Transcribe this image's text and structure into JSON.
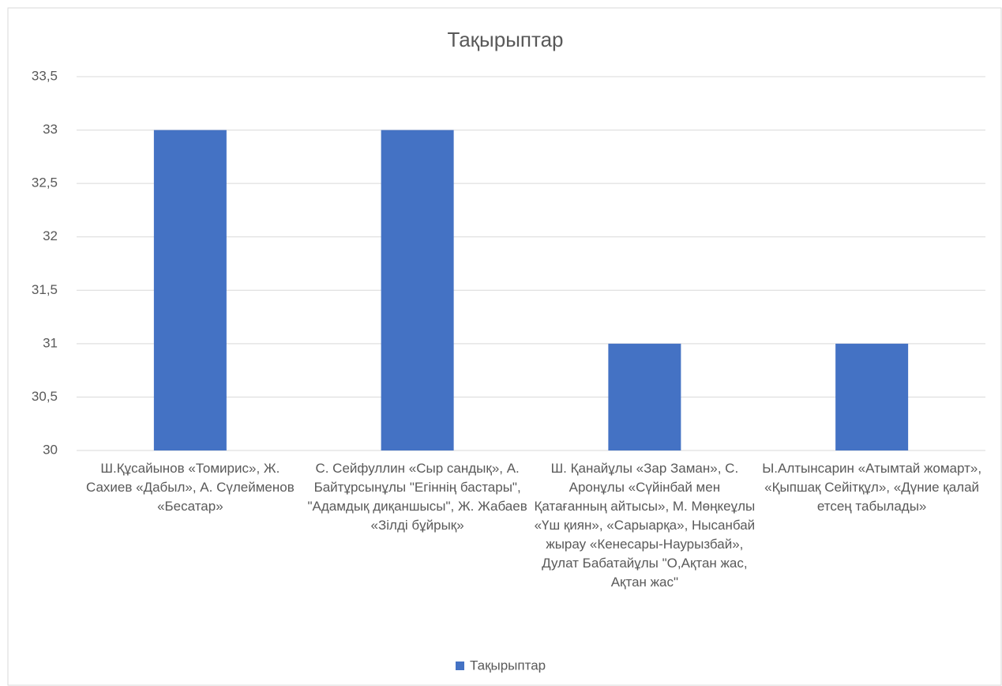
{
  "chart_data": {
    "type": "bar",
    "title": "Тақырыптар",
    "categories": [
      "Ш.Құсайынов «Томирис», Ж. Сахиев «Дабыл», А. Сүлейменов «Бесатар»",
      "С. Сейфуллин «Сыр сандық»,  А. Байтұрсынұлы \"Егіннің бастары\", \"Адамдық диқаншысы\", Ж. Жабаев «Зілді бұйрық»",
      "Ш. Қанайұлы «Зар Заман», С. Аронұлы «Сүйінбай мен Қатағанның айтысы», М. Мөңкеұлы «Үш қиян», «Сарыарқа», Нысанбай жырау «Кенесары-Наурызбай», Дулат Бабатайұлы \"О,Ақтан жас, Ақтан жас\"",
      "Ы.Алтынсарин «Атымтай жомарт», «Қыпшақ Сейітқұл», «Дүние қалай етсең табылады»"
    ],
    "series": [
      {
        "name": "Тақырыптар",
        "color": "#4472c4",
        "values": [
          33,
          33,
          31,
          31
        ]
      }
    ],
    "ylim": [
      30,
      33.5
    ],
    "yticks": [
      30,
      {
        "value": 30.5,
        "label": "30,5"
      },
      31,
      {
        "value": 31.5,
        "label": "31,5"
      },
      32,
      {
        "value": 32.5,
        "label": "32,5"
      },
      33,
      {
        "value": 33.5,
        "label": "33,5"
      }
    ],
    "grid": true,
    "legend": "bottom"
  }
}
